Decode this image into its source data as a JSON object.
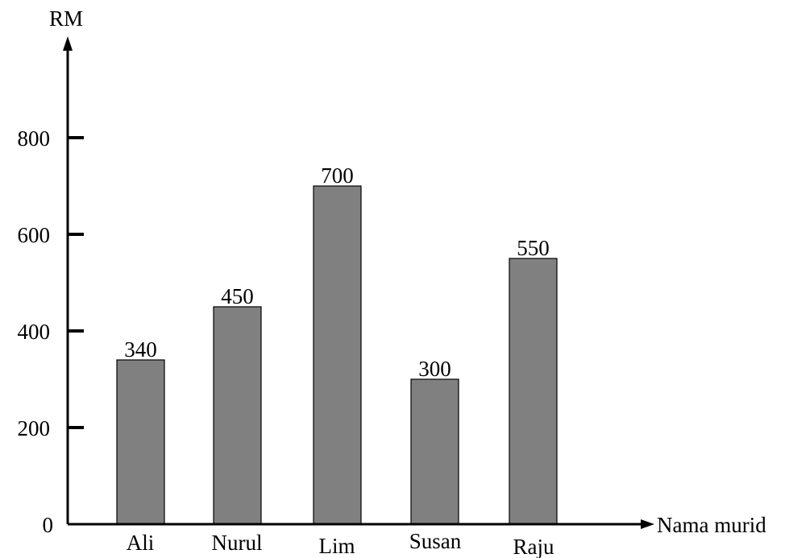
{
  "chart_data": {
    "type": "bar",
    "title": "",
    "ylabel": "RM",
    "xlabel": "Nama murid",
    "categories": [
      "Ali",
      "Nurul",
      "Lim",
      "Susan",
      "Raju"
    ],
    "values": [
      340,
      450,
      700,
      300,
      550
    ],
    "data_labels": [
      "340",
      "450",
      "700",
      "300",
      "550"
    ],
    "yticks": [
      0,
      200,
      400,
      600,
      800
    ],
    "ytick_labels": [
      "0",
      "200",
      "400",
      "600",
      "800"
    ],
    "ylim": [
      0,
      900
    ],
    "bar_color": "#808080",
    "grid": false,
    "legend": "none"
  }
}
